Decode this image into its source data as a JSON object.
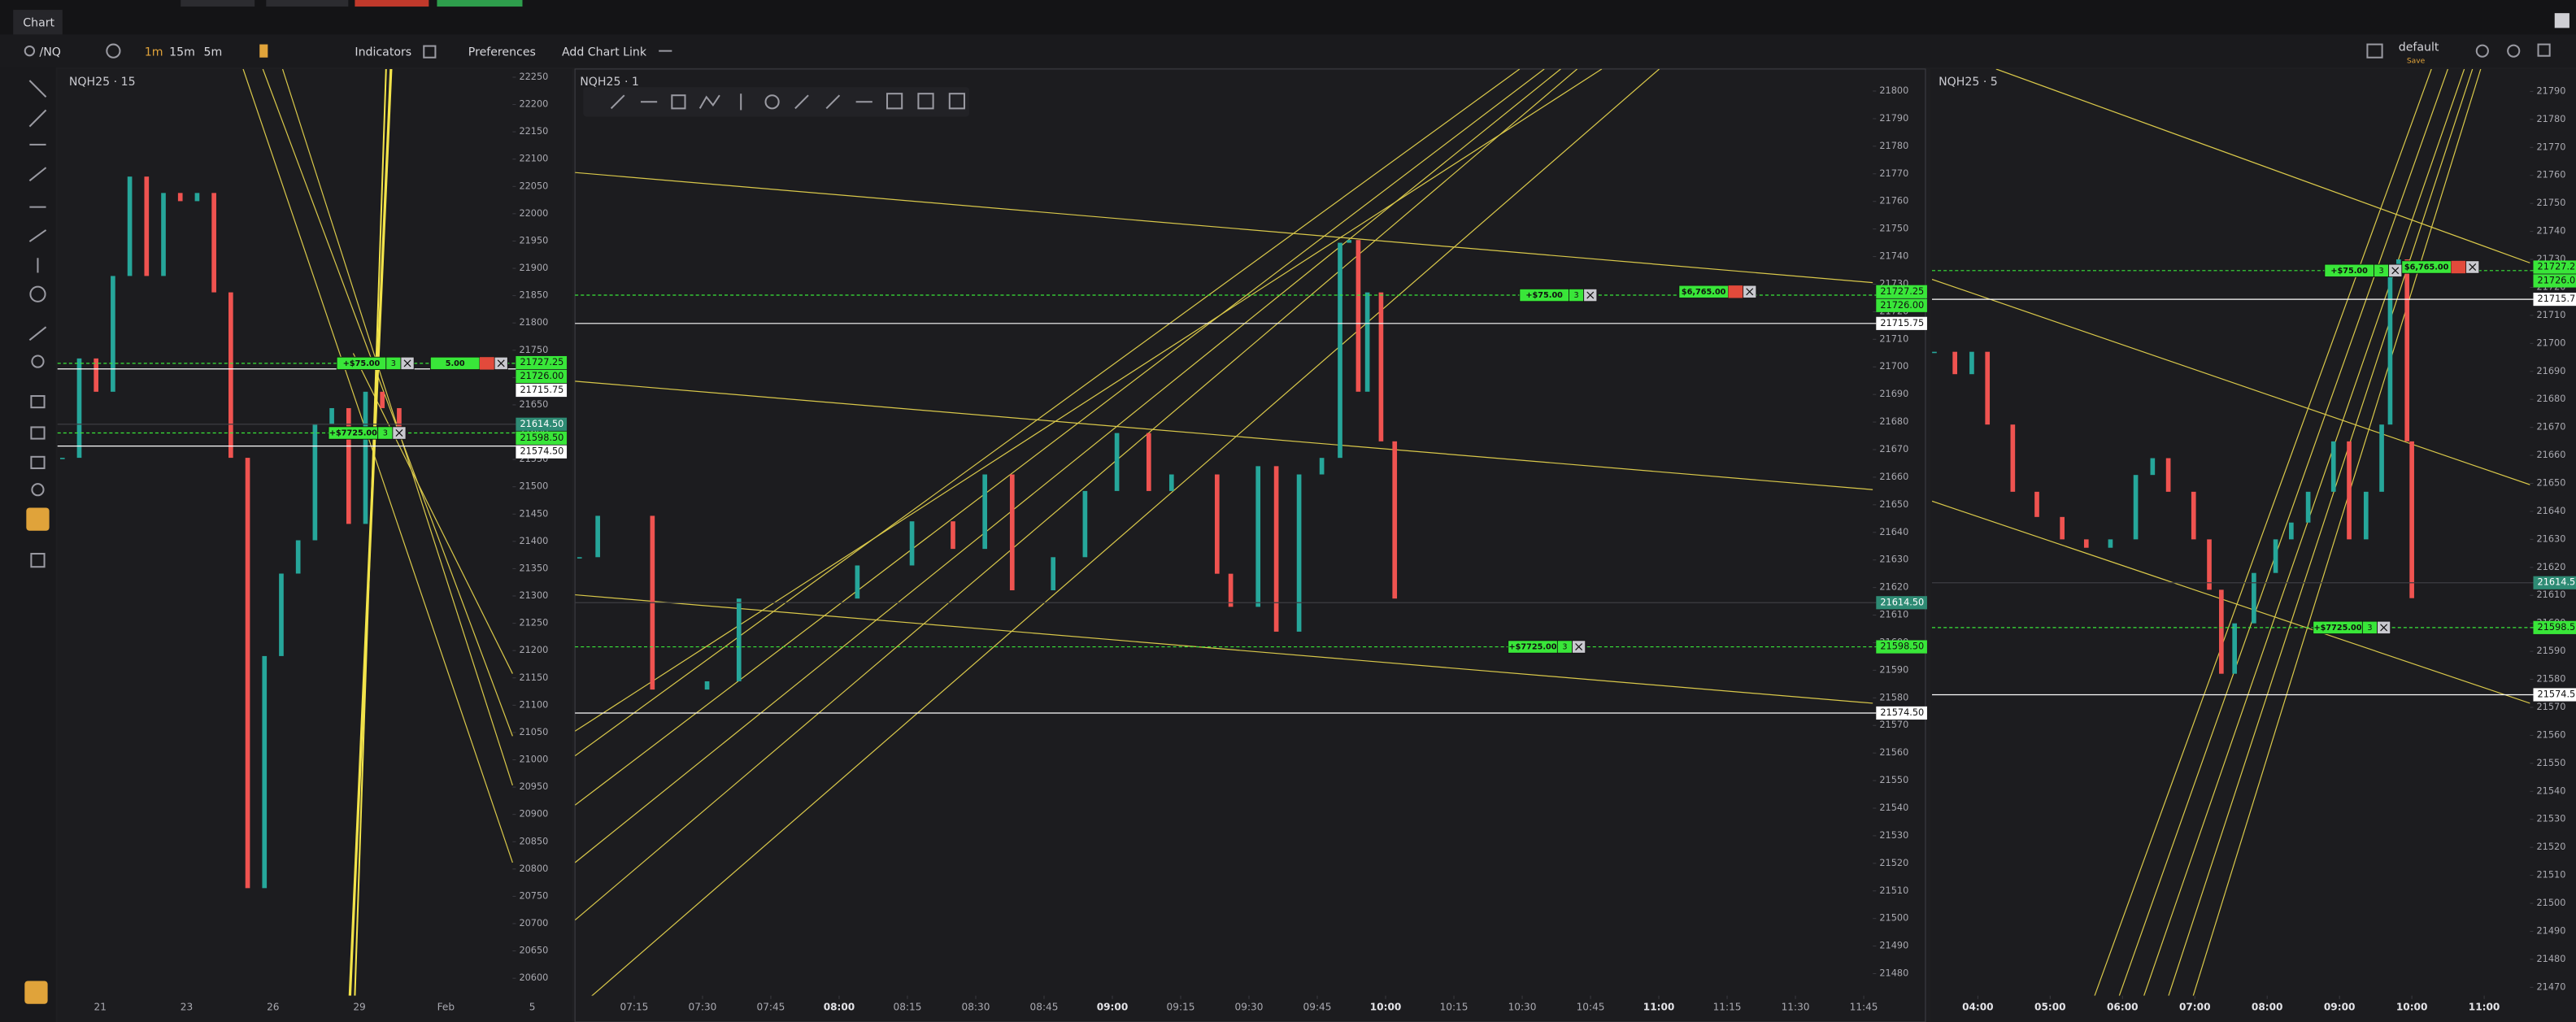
{
  "app": {
    "tab": "Chart",
    "symbol": "/NQ",
    "intervals": [
      "1m",
      "15m",
      "5m"
    ],
    "indicators": "Indicators",
    "preferences": "Preferences",
    "add_chart_link": "Add Chart Link",
    "layout": "default",
    "save": "Save"
  },
  "levels": [
    {
      "value": 21727.25,
      "label": "21727.25",
      "color": "#39e639",
      "line": "none"
    },
    {
      "value": 21726,
      "label": "21726.00",
      "color": "#39e639",
      "line": "dashed"
    },
    {
      "value": 21715.75,
      "label": "21715.75",
      "color": "#ffffff",
      "line": "solid"
    },
    {
      "value": 21614.5,
      "label": "21614.50",
      "color": "#2e8b74",
      "line": "faint"
    },
    {
      "value": 21598.5,
      "label": "21598.50",
      "color": "#39e639",
      "line": "dashed"
    },
    {
      "value": 21574.5,
      "label": "21574.50",
      "color": "#ffffff",
      "line": "solid"
    }
  ],
  "chart_data": [
    {
      "type": "candlestick",
      "title": "NQH25 · 15",
      "up_color": "#26a69a",
      "down_color": "#ef5350",
      "values": [
        21553,
        21735,
        21674,
        21886,
        22068,
        21886,
        22038,
        22023,
        22038,
        21856,
        21553,
        20765,
        21190,
        21341,
        21402,
        21614,
        21644,
        21432,
        21674,
        21644,
        21599
      ],
      "xticks": [
        "21",
        "23",
        "26",
        "29",
        "Feb",
        "5"
      ],
      "ylim": [
        20568,
        22265
      ],
      "yticks": [
        22250,
        22200,
        22150,
        22100,
        22050,
        22000,
        21950,
        21900,
        21850,
        21800,
        21750,
        21700,
        21650,
        21600,
        21550,
        21500,
        21450,
        21400,
        21350,
        21300,
        21250,
        21200,
        21150,
        21100,
        21050,
        21000,
        20950,
        20900,
        20850,
        20800,
        20750,
        20700,
        20650,
        20600
      ],
      "orders": [
        {
          "label": "+$75.00",
          "qty": 3,
          "price": 21726
        },
        {
          "label": "5.00",
          "qty": null,
          "price": 21726
        },
        {
          "label": "+$7725.00",
          "qty": 3,
          "price": 21598.5
        }
      ]
    },
    {
      "type": "candlestick",
      "title": "NQH25 · 1",
      "up_color": "#26a69a",
      "down_color": "#ef5350",
      "x": [
        "07:03",
        "07:07",
        "07:19",
        "07:31",
        "07:38",
        "08:04",
        "08:16",
        "08:25",
        "08:32",
        "08:38",
        "08:47",
        "08:54",
        "09:01",
        "09:08",
        "09:13",
        "09:23",
        "09:26",
        "09:32",
        "09:36",
        "09:41",
        "09:46",
        "09:50",
        "09:52",
        "09:54",
        "09:56",
        "09:59",
        "10:02"
      ],
      "values": [
        21631,
        21646,
        21583,
        21586,
        21616,
        21628,
        21644,
        21634,
        21661,
        21619,
        21631,
        21655,
        21676,
        21655,
        21661,
        21625,
        21613,
        21664,
        21604,
        21661,
        21667,
        21745,
        21746,
        21691,
        21727,
        21673,
        21616
      ],
      "xlim": [
        "07:02",
        "11:47"
      ],
      "xticks": [
        "07:15",
        "07:30",
        "07:45",
        "08:00",
        "08:15",
        "08:30",
        "08:45",
        "09:00",
        "09:15",
        "09:30",
        "09:45",
        "10:00",
        "10:15",
        "10:30",
        "10:45",
        "11:00",
        "11:15",
        "11:30",
        "11:45"
      ],
      "ylim": [
        21472,
        21808
      ],
      "yticks": [
        21800,
        21790,
        21780,
        21770,
        21760,
        21750,
        21740,
        21730,
        21720,
        21710,
        21700,
        21690,
        21680,
        21670,
        21660,
        21650,
        21640,
        21630,
        21620,
        21610,
        21600,
        21590,
        21580,
        21570,
        21560,
        21550,
        21540,
        21530,
        21520,
        21510,
        21500,
        21490,
        21480
      ],
      "orders": [
        {
          "label": "+$75.00",
          "qty": 3,
          "price": 21726
        },
        {
          "label": "$6,765.00",
          "qty": null,
          "price": 21727.25
        },
        {
          "label": "+$7725.00",
          "qty": 3,
          "price": 21598.5
        }
      ]
    },
    {
      "type": "candlestick",
      "title": "NQH25 · 5",
      "up_color": "#26a69a",
      "down_color": "#ef5350",
      "x": [
        "03:24",
        "03:41",
        "03:55",
        "04:08",
        "04:29",
        "04:49",
        "05:10",
        "05:30",
        "05:50",
        "06:11",
        "06:25",
        "06:38",
        "06:59",
        "07:12",
        "07:22",
        "07:33",
        "07:49",
        "08:07",
        "08:20",
        "08:34",
        "08:55",
        "09:08",
        "09:22",
        "09:35",
        "09:42",
        "09:49",
        "09:56",
        "10:00"
      ],
      "values": [
        21697,
        21689,
        21697,
        21671,
        21647,
        21638,
        21630,
        21627,
        21630,
        21653,
        21659,
        21647,
        21630,
        21612,
        21582,
        21600,
        21618,
        21630,
        21636,
        21647,
        21665,
        21630,
        21647,
        21671,
        21724,
        21730,
        21665,
        21609
      ],
      "xlim": [
        "03:22",
        "11:38"
      ],
      "xticks": [
        "04:00",
        "05:00",
        "06:00",
        "07:00",
        "08:00",
        "09:00",
        "10:00",
        "11:00"
      ],
      "ylim": [
        21467,
        21798
      ],
      "yticks": [
        21790,
        21780,
        21770,
        21760,
        21750,
        21740,
        21730,
        21720,
        21710,
        21700,
        21690,
        21680,
        21670,
        21660,
        21650,
        21640,
        21630,
        21620,
        21610,
        21600,
        21590,
        21580,
        21570,
        21560,
        21550,
        21540,
        21530,
        21520,
        21510,
        21500,
        21490,
        21480,
        21470
      ],
      "orders": [
        {
          "label": "+$75.00",
          "qty": 3,
          "price": 21726
        },
        {
          "label": "$6,765.00",
          "qty": null,
          "price": 21727.25
        },
        {
          "label": "+$7725.00",
          "qty": 3,
          "price": 21598.5
        }
      ]
    }
  ]
}
